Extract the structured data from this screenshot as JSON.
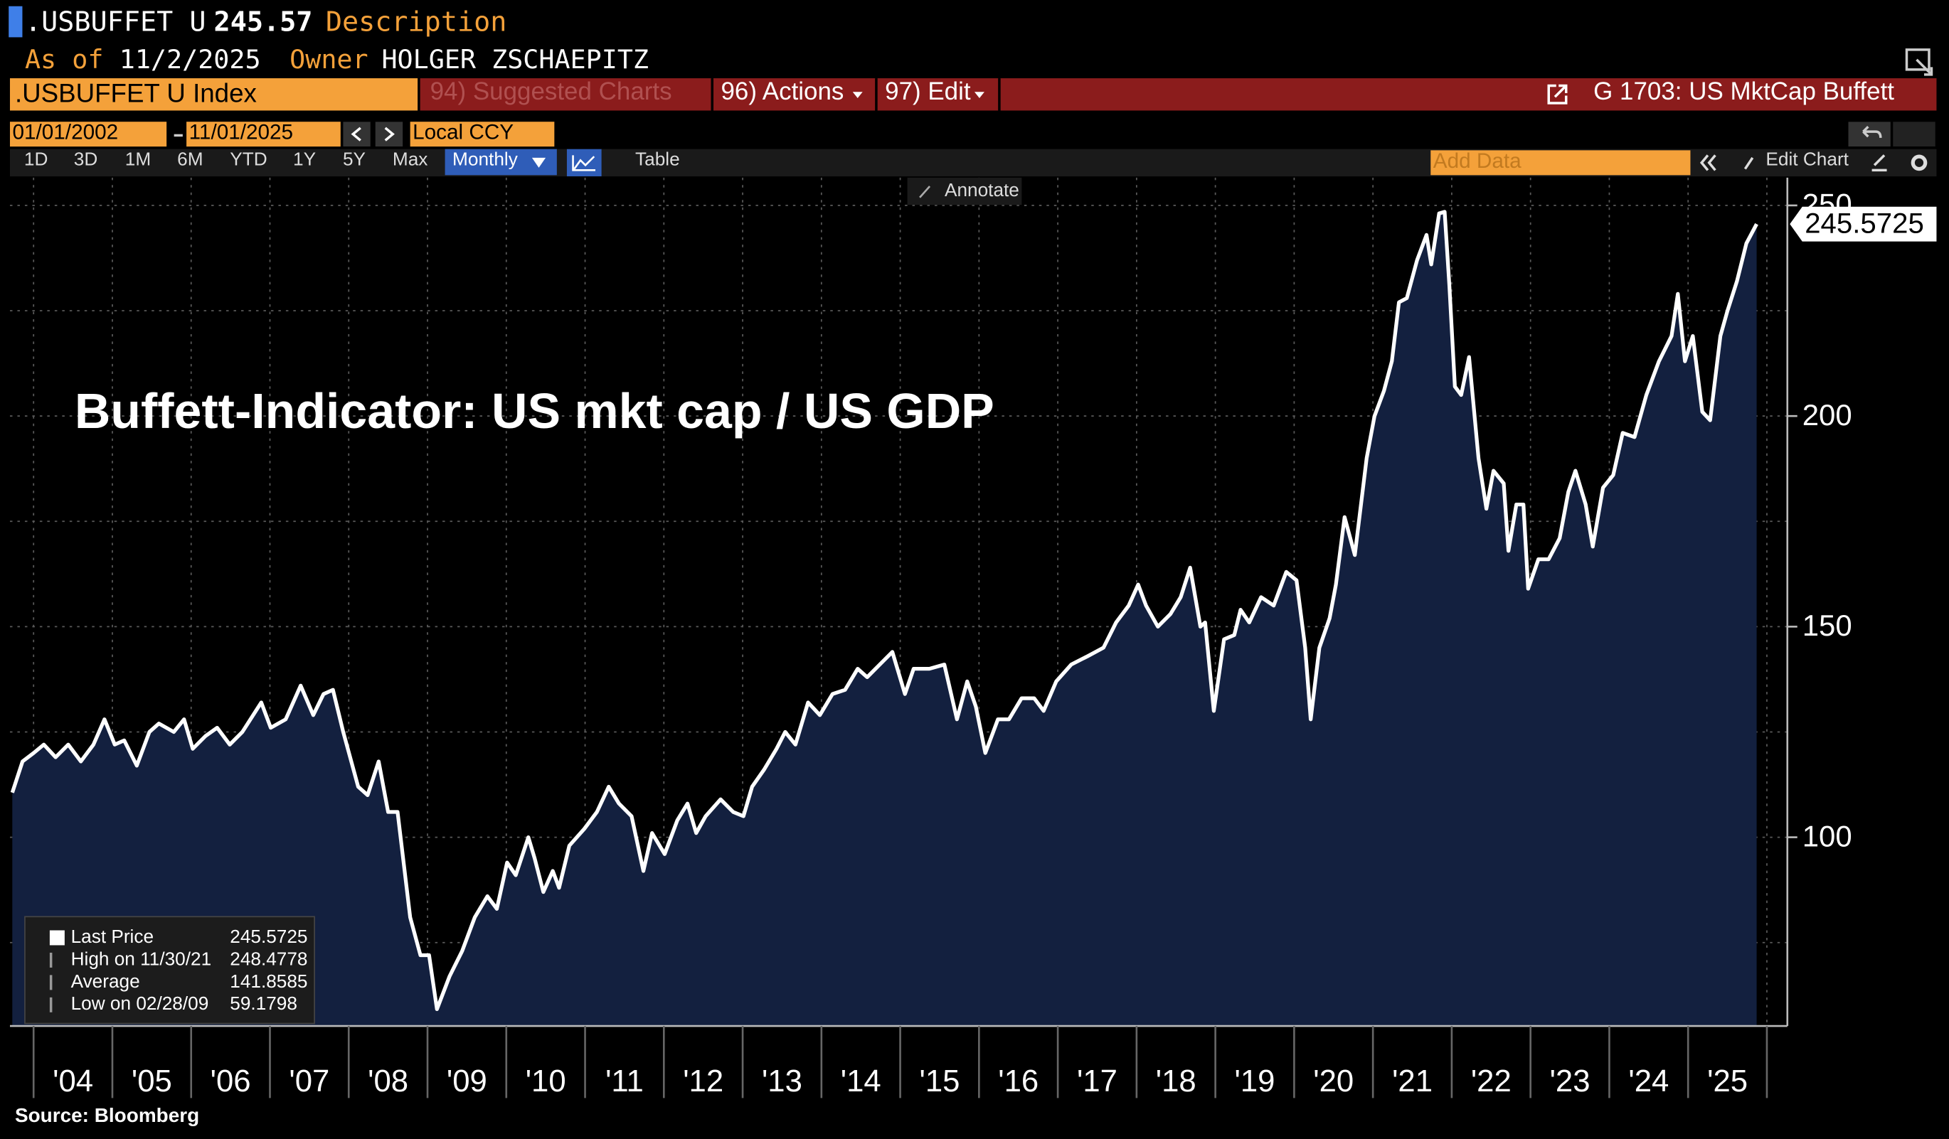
{
  "header": {
    "ticker": ".USBUFFET U",
    "last": "245.57",
    "description": "Description",
    "as_of_label": "As of",
    "as_of": "11/2/2025",
    "owner_label": "Owner",
    "owner": "HOLGER ZSCHAEPITZ"
  },
  "toolbar": {
    "security": ".USBUFFET U Index",
    "suggested": "94) Suggested Charts",
    "actions": "96) Actions",
    "edit": "97) Edit",
    "chart_name": "G 1703: US MktCap Buffett",
    "start_date": "01/01/2002",
    "end_date": "11/01/2025",
    "currency": "Local CCY",
    "periods": [
      "1D",
      "3D",
      "1M",
      "6M",
      "YTD",
      "1Y",
      "5Y",
      "Max"
    ],
    "frequency": "Monthly",
    "table": "Table",
    "add_data": "Add Data",
    "edit_chart": "Edit Chart",
    "annotate": "Annotate"
  },
  "chart_data": {
    "type": "area",
    "title": "Buffett-Indicator: US mkt cap / US GDP",
    "x": [
      2003.73,
      2003.86,
      2004.0,
      2004.13,
      2004.28,
      2004.44,
      2004.6,
      2004.76,
      2004.9,
      2005.03,
      2005.15,
      2005.31,
      2005.47,
      2005.59,
      2005.78,
      2005.91,
      2006.02,
      2006.18,
      2006.33,
      2006.49,
      2006.65,
      2006.89,
      2007.01,
      2007.2,
      2007.39,
      2007.55,
      2007.68,
      2007.8,
      2007.93,
      2008.12,
      2008.24,
      2008.38,
      2008.5,
      2008.62,
      2008.78,
      2008.91,
      2009.02,
      2009.12,
      2009.28,
      2009.44,
      2009.6,
      2009.76,
      2009.88,
      2010.01,
      2010.12,
      2010.28,
      2010.36,
      2010.47,
      2010.59,
      2010.67,
      2010.8,
      2010.99,
      2011.15,
      2011.3,
      2011.43,
      2011.59,
      2011.74,
      2011.85,
      2012.01,
      2012.17,
      2012.3,
      2012.41,
      2012.53,
      2012.72,
      2012.88,
      2013.01,
      2013.12,
      2013.27,
      2013.43,
      2013.54,
      2013.67,
      2013.83,
      2013.98,
      2014.14,
      2014.3,
      2014.46,
      2014.58,
      2014.74,
      2014.9,
      2015.06,
      2015.17,
      2015.37,
      2015.56,
      2015.72,
      2015.85,
      2015.96,
      2016.08,
      2016.24,
      2016.38,
      2016.54,
      2016.7,
      2016.82,
      2016.98,
      2017.17,
      2017.38,
      2017.58,
      2017.74,
      2017.9,
      2018.02,
      2018.12,
      2018.27,
      2018.43,
      2018.56,
      2018.68,
      2018.81,
      2018.87,
      2018.98,
      2019.11,
      2019.24,
      2019.32,
      2019.43,
      2019.58,
      2019.74,
      2019.9,
      2020.03,
      2020.14,
      2020.21,
      2020.32,
      2020.45,
      2020.53,
      2020.64,
      2020.77,
      2020.92,
      2021.02,
      2021.14,
      2021.24,
      2021.33,
      2021.43,
      2021.56,
      2021.68,
      2021.74,
      2021.84,
      2021.91,
      2021.97,
      2022.04,
      2022.12,
      2022.22,
      2022.34,
      2022.44,
      2022.53,
      2022.66,
      2022.72,
      2022.82,
      2022.91,
      2022.97,
      2023.1,
      2023.23,
      2023.37,
      2023.48,
      2023.57,
      2023.7,
      2023.79,
      2023.92,
      2024.05,
      2024.17,
      2024.32,
      2024.47,
      2024.63,
      2024.79,
      2024.87,
      2024.96,
      2025.06,
      2025.18,
      2025.28,
      2025.41,
      2025.5,
      2025.62,
      2025.74,
      2025.87
    ],
    "series": [
      {
        "color": "#ffffff",
        "fill": "#13203f",
        "values": [
          110.6,
          118,
          120,
          122,
          119,
          122,
          118,
          122,
          128,
          122,
          123,
          117,
          125,
          127,
          125,
          128,
          121,
          124,
          126,
          122,
          125,
          132,
          126,
          128,
          136,
          129,
          134,
          135,
          125,
          112,
          110,
          118,
          106,
          106,
          81,
          72,
          72,
          59.1798,
          67,
          73,
          81,
          86,
          83,
          94,
          91,
          100,
          95,
          87,
          92,
          88,
          98,
          102,
          106,
          112,
          108,
          105,
          92,
          101,
          96,
          104,
          108,
          101,
          105,
          109,
          106,
          105,
          112,
          116,
          121,
          125,
          122,
          132,
          129,
          134,
          135,
          140,
          138,
          141,
          144,
          134,
          140,
          140,
          141,
          128,
          137,
          131,
          120,
          128,
          128,
          133,
          133,
          130,
          137,
          141,
          143,
          145,
          151,
          155,
          160,
          155,
          150,
          153,
          157,
          164,
          150,
          151,
          130,
          147,
          148,
          154,
          151,
          157,
          155,
          163,
          161,
          145,
          128,
          145,
          152,
          160,
          176,
          167,
          190,
          200,
          206,
          213,
          227,
          228,
          237,
          243,
          236,
          248.1,
          248.4778,
          231,
          207,
          205,
          214,
          190,
          178,
          187,
          184,
          168,
          179,
          179,
          159,
          166,
          166,
          171,
          182,
          187,
          179,
          169,
          183,
          186,
          196,
          195,
          205,
          213,
          219,
          229,
          213,
          219,
          201,
          199,
          219,
          225,
          232,
          241,
          245.5725
        ]
      }
    ],
    "xlim": [
      2003.7,
      2026.26
    ],
    "xticks": [
      {
        "value": 2004,
        "label": "'04"
      },
      {
        "value": 2005,
        "label": "'05"
      },
      {
        "value": 2006,
        "label": "'06"
      },
      {
        "value": 2007,
        "label": "'07"
      },
      {
        "value": 2008,
        "label": "'08"
      },
      {
        "value": 2009,
        "label": "'09"
      },
      {
        "value": 2010,
        "label": "'10"
      },
      {
        "value": 2011,
        "label": "'11"
      },
      {
        "value": 2012,
        "label": "'12"
      },
      {
        "value": 2013,
        "label": "'13"
      },
      {
        "value": 2014,
        "label": "'14"
      },
      {
        "value": 2015,
        "label": "'15"
      },
      {
        "value": 2016,
        "label": "'16"
      },
      {
        "value": 2017,
        "label": "'17"
      },
      {
        "value": 2018,
        "label": "'18"
      },
      {
        "value": 2019,
        "label": "'19"
      },
      {
        "value": 2020,
        "label": "'20"
      },
      {
        "value": 2021,
        "label": "'21"
      },
      {
        "value": 2022,
        "label": "'22"
      },
      {
        "value": 2023,
        "label": "'23"
      },
      {
        "value": 2024,
        "label": "'24"
      },
      {
        "value": 2025,
        "label": "'25"
      }
    ],
    "minor_xticks": [
      2026
    ],
    "ylim": [
      55.2,
      256.6
    ],
    "yticks": [
      100,
      150,
      200,
      250
    ],
    "minor_yticks": [
      75,
      125,
      175,
      225
    ],
    "grid": true,
    "stats": [
      {
        "name": "Last Price",
        "value": "245.5725"
      },
      {
        "name": "High on 11/30/21",
        "value": "248.4778"
      },
      {
        "name": "Average",
        "value": "141.8585"
      },
      {
        "name": "Low on 02/28/09",
        "value": "59.1798"
      }
    ],
    "source": "Source: Bloomberg"
  }
}
